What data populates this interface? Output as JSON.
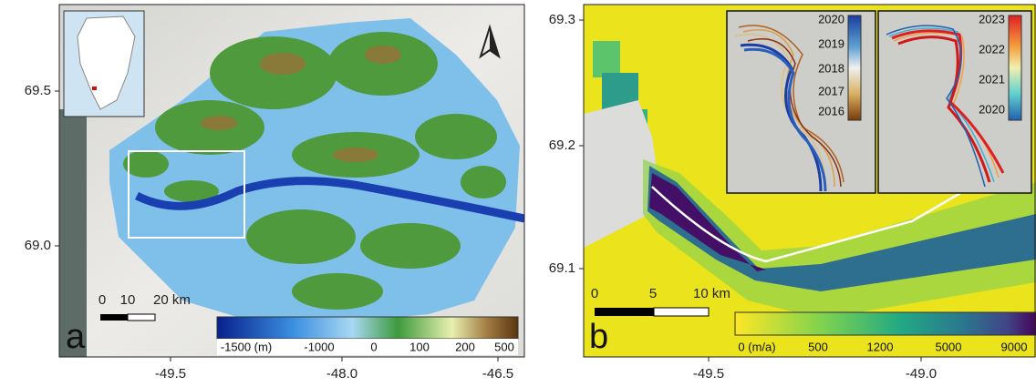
{
  "panel_a": {
    "label": "a",
    "y_tick_labels": [
      "69.5",
      "69.0"
    ],
    "x_tick_labels": [
      "-49.5",
      "-48.0",
      "-46.5"
    ],
    "scale_bar_labels": [
      "0",
      "10",
      "20 km"
    ],
    "colorbar_labels": [
      "-1500 (m)",
      "-1000",
      "0",
      "100",
      "200",
      "500"
    ]
  },
  "panel_b": {
    "label": "b",
    "y_tick_labels": [
      "69.3",
      "69.2",
      "69.1"
    ],
    "x_tick_labels": [
      "-49.5",
      "-49.0"
    ],
    "scale_bar_labels": [
      "0",
      "5",
      "10 km"
    ],
    "colorbar_labels": [
      "0 (m/a)",
      "500",
      "1200",
      "5000",
      "9000"
    ],
    "inset_left_years": [
      "2020",
      "2019",
      "2018",
      "2017",
      "2016"
    ],
    "inset_right_years": [
      "2023",
      "2022",
      "2021",
      "2020"
    ]
  }
}
